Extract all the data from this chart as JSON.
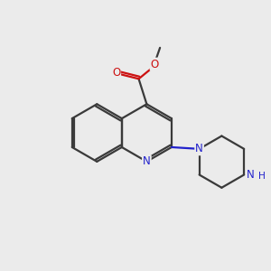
{
  "background_color": "#ebebeb",
  "bond_color": "#3a3a3a",
  "nitrogen_color": "#2222cc",
  "oxygen_color": "#cc1111",
  "line_width": 1.6,
  "figsize": [
    3.0,
    3.0
  ],
  "dpi": 100,
  "xlim": [
    0,
    10
  ],
  "ylim": [
    0,
    10
  ],
  "font_size": 8.5
}
